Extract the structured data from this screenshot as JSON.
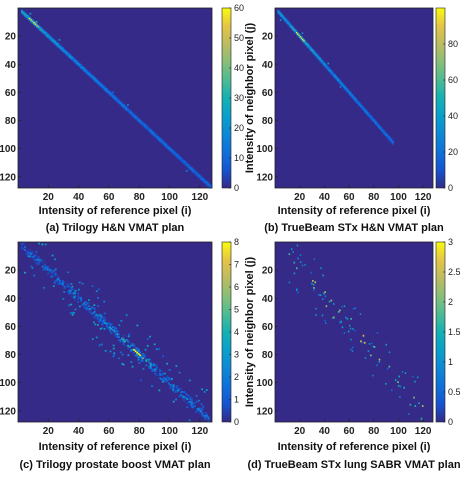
{
  "chart_data": [
    {
      "type": "heatmap",
      "caption": "(a) Trilogy H&N VMAT plan",
      "xlabel": "Intensity of reference pixel (i)",
      "ylabel": "Intensity of neighbor pixel (j)",
      "xticks": [
        20,
        40,
        60,
        80,
        100,
        120
      ],
      "yticks": [
        20,
        40,
        60,
        80,
        100,
        120
      ],
      "xlim": [
        0,
        128
      ],
      "ylim": [
        0,
        128
      ],
      "colorbar": {
        "min": 0,
        "max": 60,
        "ticks": [
          0,
          10,
          20,
          30,
          40,
          50,
          60
        ]
      },
      "diagonal": {
        "from": 2,
        "to": 127,
        "peak_at": 10,
        "peak_value": 60,
        "spread": "narrow",
        "noise": "low"
      }
    },
    {
      "type": "heatmap",
      "caption": "(b) TrueBeam STx H&N VMAT plan",
      "xlabel": "Intensity of reference pixel (i)",
      "ylabel": "Intensity of neighbor pixel (j)",
      "xticks": [
        20,
        40,
        60,
        80,
        100,
        120
      ],
      "yticks": [
        20,
        40,
        60,
        80,
        100,
        120
      ],
      "xlim": [
        0,
        128
      ],
      "ylim": [
        0,
        128
      ],
      "colorbar": {
        "min": 0,
        "max": 100,
        "ticks": [
          0,
          20,
          40,
          60,
          80
        ]
      },
      "diagonal": {
        "from": 2,
        "to": 95,
        "peak_at": 20,
        "peak_value": 100,
        "spread": "narrow",
        "noise": "low"
      }
    },
    {
      "type": "heatmap",
      "caption": "(c) Trilogy prostate boost VMAT plan",
      "xlabel": "Intensity of reference pixel (i)",
      "ylabel": "Intensity of neighbor pixel (j)",
      "xticks": [
        20,
        40,
        60,
        80,
        100,
        120
      ],
      "yticks": [
        20,
        40,
        60,
        80,
        100,
        120
      ],
      "xlim": [
        0,
        128
      ],
      "ylim": [
        0,
        128
      ],
      "colorbar": {
        "min": 0,
        "max": 8,
        "ticks": [
          0,
          1,
          2,
          3,
          4,
          5,
          6,
          7,
          8
        ]
      },
      "diagonal": {
        "from": 2,
        "to": 125,
        "peak_at": 78,
        "peak_value": 8,
        "spread": "wide",
        "noise": "high"
      }
    },
    {
      "type": "heatmap",
      "caption": "(d) TrueBeam STx lung SABR VMAT plan",
      "xlabel": "Intensity of reference pixel (i)",
      "ylabel": "Intensity of neighbor pixel (j)",
      "xticks": [
        20,
        40,
        60,
        80,
        100,
        120
      ],
      "yticks": [
        20,
        40,
        60,
        80,
        100,
        120
      ],
      "xlim": [
        0,
        128
      ],
      "ylim": [
        0,
        128
      ],
      "colorbar": {
        "min": 0,
        "max": 3,
        "ticks": [
          0,
          0.5,
          1,
          1.5,
          2,
          2.5,
          3
        ]
      },
      "diagonal": {
        "from": 10,
        "to": 120,
        "peak_at": 70,
        "peak_value": 3,
        "spread": "sparse",
        "noise": "sparse"
      }
    }
  ]
}
